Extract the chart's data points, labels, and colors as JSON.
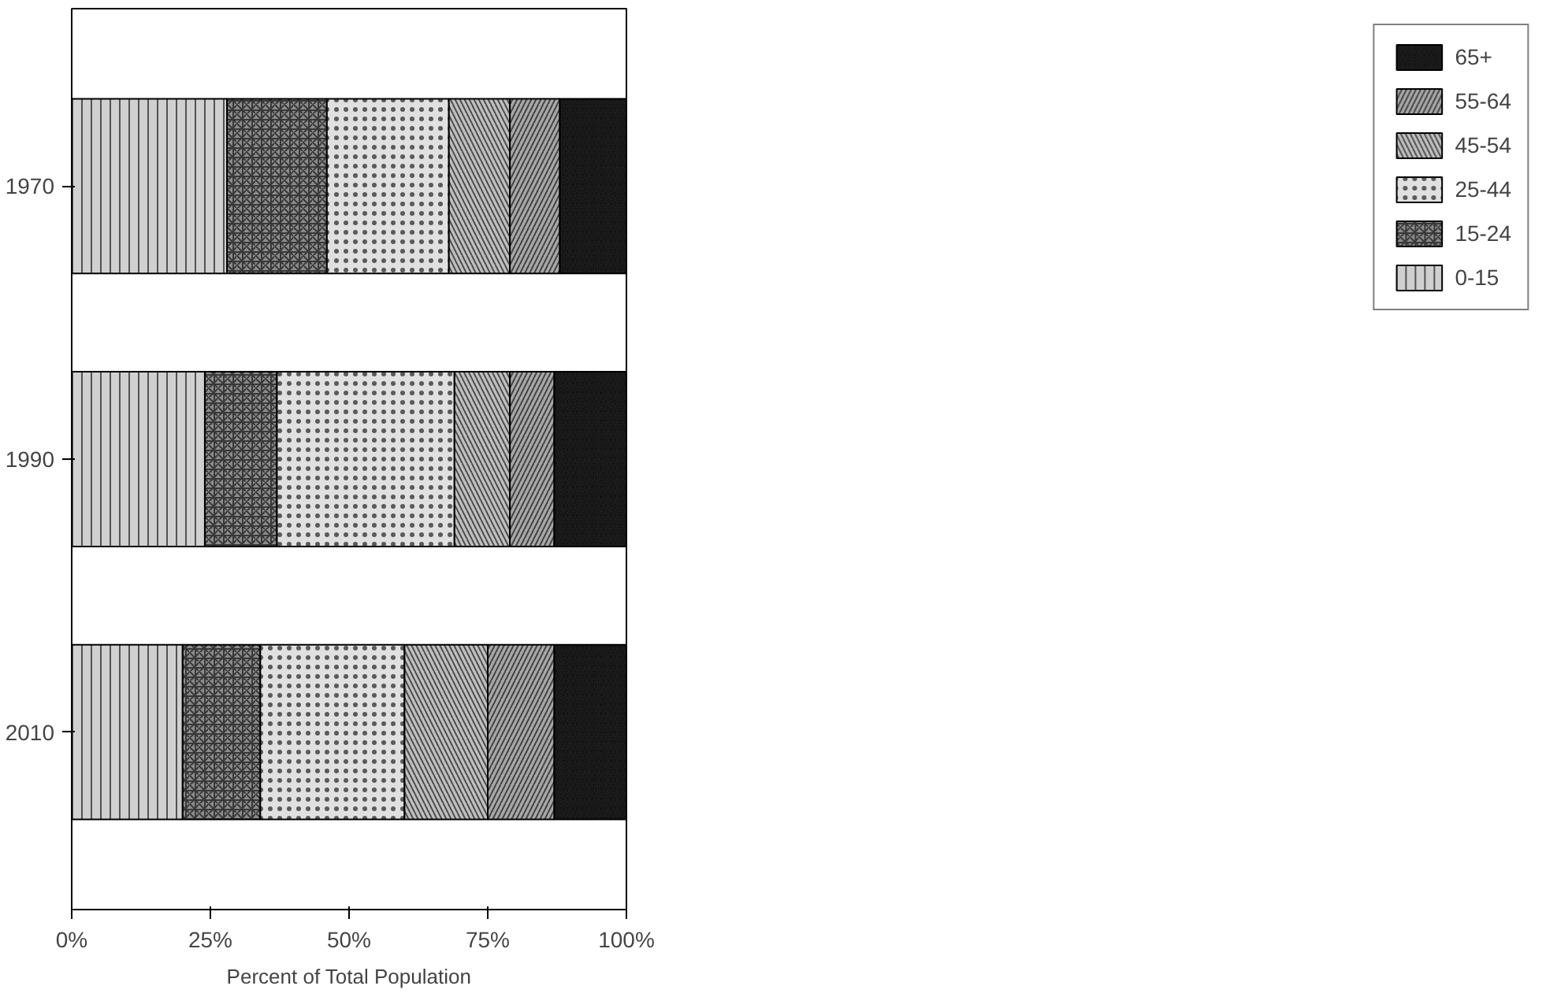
{
  "chart_data": {
    "type": "bar",
    "orientation": "horizontal",
    "stacked": true,
    "xlabel": "Percent of Total Population",
    "categories": [
      "1970",
      "1990",
      "2010"
    ],
    "series": [
      {
        "name": "0-15",
        "color": "#d0d0d0",
        "values": [
          28,
          24,
          20
        ]
      },
      {
        "name": "15-24",
        "color": "#8c8c8c",
        "values": [
          18,
          13,
          14
        ]
      },
      {
        "name": "25-44",
        "color": "#e0e0e0",
        "values": [
          22,
          32,
          26
        ]
      },
      {
        "name": "45-54",
        "color": "#c0c0c0",
        "values": [
          11,
          10,
          15
        ]
      },
      {
        "name": "55-64",
        "color": "#a8a8a8",
        "values": [
          9,
          8,
          12
        ]
      },
      {
        "name": "65+",
        "color": "#303030",
        "values": [
          12,
          13,
          13
        ]
      }
    ],
    "xlim": [
      0,
      100
    ],
    "xticks": [
      {
        "value": 0,
        "label": "0%"
      },
      {
        "value": 25,
        "label": "25%"
      },
      {
        "value": 50,
        "label": "50%"
      },
      {
        "value": 75,
        "label": "75%"
      },
      {
        "value": 100,
        "label": "100%"
      }
    ],
    "legend": "right",
    "grid": false
  }
}
